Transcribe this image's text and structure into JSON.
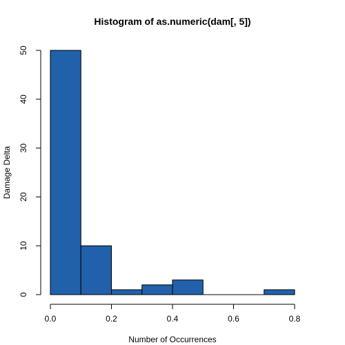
{
  "chart_data": {
    "type": "bar",
    "title": "Histogram of as.numeric(dam[, 5])",
    "xlabel": "Number of Occurrences",
    "ylabel": "Damage Delta",
    "bins": [
      {
        "start": 0.0,
        "end": 0.1,
        "count": 50
      },
      {
        "start": 0.1,
        "end": 0.2,
        "count": 10
      },
      {
        "start": 0.2,
        "end": 0.3,
        "count": 1
      },
      {
        "start": 0.3,
        "end": 0.4,
        "count": 2
      },
      {
        "start": 0.4,
        "end": 0.5,
        "count": 3
      },
      {
        "start": 0.5,
        "end": 0.6,
        "count": 0
      },
      {
        "start": 0.6,
        "end": 0.7,
        "count": 0
      },
      {
        "start": 0.7,
        "end": 0.8,
        "count": 1
      }
    ],
    "xlim": [
      0.0,
      0.8
    ],
    "ylim": [
      0,
      50
    ],
    "xticks": [
      "0.0",
      "0.2",
      "0.4",
      "0.6",
      "0.8"
    ],
    "yticks": [
      "0",
      "10",
      "20",
      "30",
      "40",
      "50"
    ],
    "bar_color": "#2161ab",
    "grid": false
  }
}
